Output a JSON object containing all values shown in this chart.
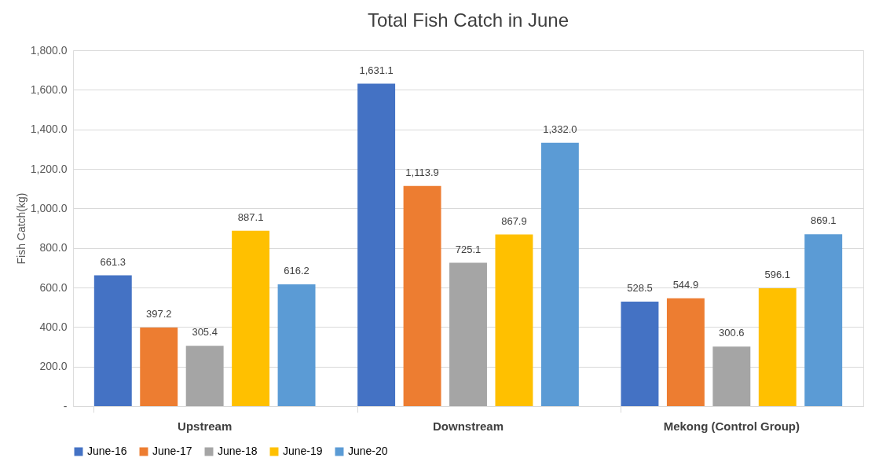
{
  "chart_data": {
    "type": "bar",
    "title": "Total Fish Catch in June",
    "ylabel": "Fish Catch(kg)",
    "categories": [
      "Upstream",
      "Downstream",
      "Mekong (Control Group)"
    ],
    "series": [
      {
        "name": "June-16",
        "color": "#4472c4",
        "values": [
          661.3,
          1631.1,
          528.5
        ],
        "value_labels": [
          "661.3",
          "1,631.1",
          "528.5"
        ]
      },
      {
        "name": "June-17",
        "color": "#ed7d31",
        "values": [
          397.2,
          1113.9,
          544.9
        ],
        "value_labels": [
          "397.2",
          "1,113.9",
          "544.9"
        ]
      },
      {
        "name": "June-18",
        "color": "#a5a5a5",
        "values": [
          305.4,
          725.1,
          300.6
        ],
        "value_labels": [
          "305.4",
          "725.1",
          "300.6"
        ]
      },
      {
        "name": "June-19",
        "color": "#ffc000",
        "values": [
          887.1,
          867.9,
          596.1
        ],
        "value_labels": [
          "887.1",
          "867.9",
          "596.1"
        ]
      },
      {
        "name": "June-20",
        "color": "#5b9bd5",
        "values": [
          616.2,
          1332.0,
          869.1
        ],
        "value_labels": [
          "616.2",
          "1,332.0",
          "869.1"
        ]
      }
    ],
    "ylim": [
      0,
      1800
    ],
    "yticks": [
      {
        "value": 0,
        "label": "-"
      },
      {
        "value": 200,
        "label": "200.0"
      },
      {
        "value": 400,
        "label": "400.0"
      },
      {
        "value": 600,
        "label": "600.0"
      },
      {
        "value": 800,
        "label": "800.0"
      },
      {
        "value": 1000,
        "label": "1,000.0"
      },
      {
        "value": 1200,
        "label": "1,200.0"
      },
      {
        "value": 1400,
        "label": "1,400.0"
      },
      {
        "value": 1600,
        "label": "1,600.0"
      },
      {
        "value": 1800,
        "label": "1,800.0"
      }
    ],
    "grid": "y",
    "legend": "bottom"
  }
}
